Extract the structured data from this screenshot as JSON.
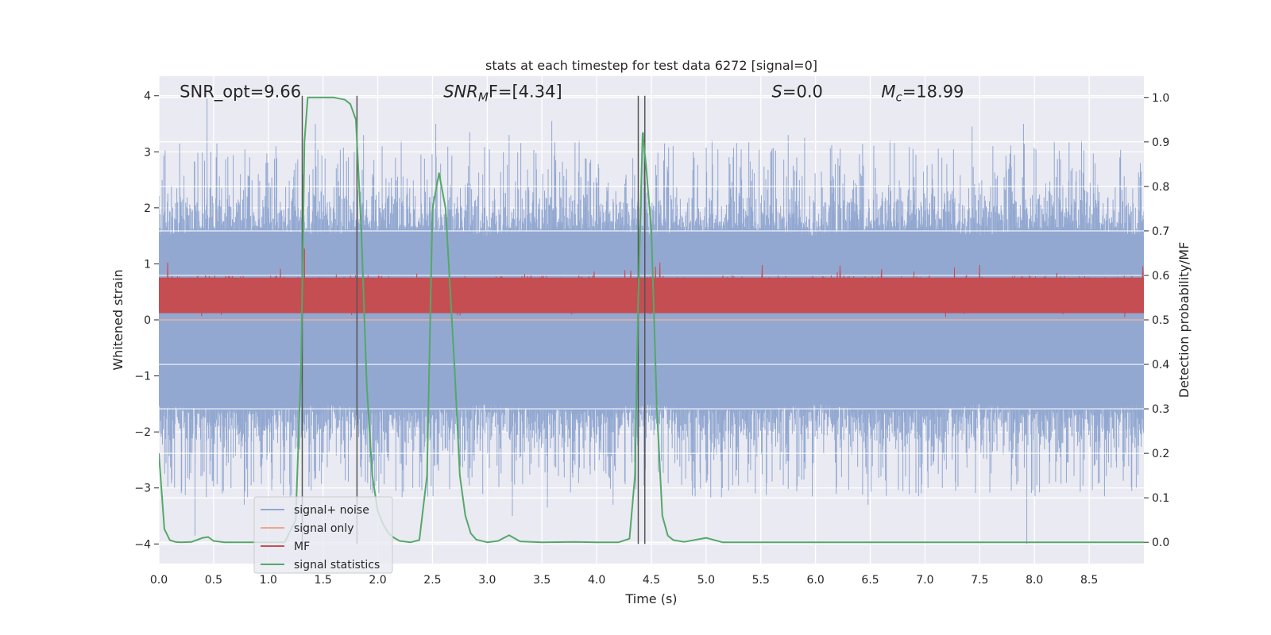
{
  "chart_data": {
    "type": "line",
    "title": "stats at each timestep for test data 6272 [signal=0]",
    "xlabel": "Time (s)",
    "ylabel": "Whitened strain",
    "ylabel_right": "Detection probability/MF",
    "xlim": [
      0.0,
      9.0
    ],
    "ylim": [
      -4.35,
      4.35
    ],
    "ylim_right": [
      -0.0478,
      1.0478
    ],
    "x_ticks": [
      "0.0",
      "0.5",
      "1.0",
      "1.5",
      "2.0",
      "2.5",
      "3.0",
      "3.5",
      "4.0",
      "4.5",
      "5.0",
      "5.5",
      "6.0",
      "6.5",
      "7.0",
      "7.5",
      "8.0",
      "8.5"
    ],
    "y_ticks": [
      "4",
      "3",
      "2",
      "1",
      "0",
      "−1",
      "−2",
      "−3",
      "−4"
    ],
    "y_ticks_right": [
      "1.0",
      "0.9",
      "0.8",
      "0.7",
      "0.6",
      "0.5",
      "0.4",
      "0.3",
      "0.2",
      "0.1",
      "0.0"
    ],
    "grid": true,
    "legend_position": "lower left",
    "annotations": [
      {
        "text": "SNR_opt=9.66",
        "x": 0.19,
        "y": 4.0
      },
      {
        "text_main": "SNR",
        "text_sub": "M",
        "text_rest": "F=[4.34]",
        "x": 2.6,
        "y": 4.0
      },
      {
        "text_main": "S",
        "text_rest": "=0.0",
        "x": 5.6,
        "y": 4.0
      },
      {
        "text_main": "M",
        "text_sub": "c",
        "text_rest": "=18.99",
        "x": 6.6,
        "y": 4.0
      }
    ],
    "vertical_markers": [
      {
        "x": 1.31,
        "ymin": -4.0,
        "ymax": 4.0
      },
      {
        "x": 1.81,
        "ymin": -4.0,
        "ymax": 4.0
      },
      {
        "x": 4.38,
        "ymin": -4.0,
        "ymax": 4.0
      },
      {
        "x": 4.44,
        "ymin": -4.0,
        "ymax": 4.0
      }
    ],
    "series": [
      {
        "name": "signal+ noise",
        "color": "#92a8d1",
        "kind": "noise_band",
        "envelope": {
          "x": [
            0.0,
            0.5,
            1.0,
            1.5,
            2.0,
            2.5,
            3.0,
            3.5,
            4.0,
            4.5,
            5.0,
            5.5,
            6.0,
            6.5,
            7.0,
            7.5,
            8.0,
            8.5,
            9.0
          ],
          "upper_typical": [
            1.5,
            1.6,
            1.6,
            1.5,
            1.6,
            1.6,
            1.5,
            1.6,
            1.6,
            1.5,
            1.6,
            1.6,
            1.5,
            1.6,
            1.6,
            1.5,
            1.6,
            1.6,
            1.5
          ],
          "lower_typical": [
            -1.5,
            -1.6,
            -1.6,
            -1.5,
            -1.6,
            -1.6,
            -1.5,
            -1.6,
            -1.6,
            -1.5,
            -1.6,
            -1.6,
            -1.5,
            -1.6,
            -1.6,
            -1.5,
            -1.6,
            -1.6,
            -1.5
          ]
        },
        "peaks": [
          {
            "x": 0.03,
            "y": 2.5
          },
          {
            "x": 0.19,
            "y": 3.15
          },
          {
            "x": 0.44,
            "y": 3.95
          },
          {
            "x": 0.53,
            "y": 3.15
          },
          {
            "x": 0.83,
            "y": 2.9
          },
          {
            "x": 1.07,
            "y": 3.1
          },
          {
            "x": 1.43,
            "y": 3.5
          },
          {
            "x": 1.87,
            "y": 3.3
          },
          {
            "x": 2.04,
            "y": 3.1
          },
          {
            "x": 2.53,
            "y": 3.5
          },
          {
            "x": 2.84,
            "y": 3.35
          },
          {
            "x": 3.2,
            "y": 3.3
          },
          {
            "x": 3.59,
            "y": 3.55
          },
          {
            "x": 3.84,
            "y": 3.2
          },
          {
            "x": 4.43,
            "y": 3.35
          },
          {
            "x": 4.62,
            "y": 3.15
          },
          {
            "x": 5.21,
            "y": 2.9
          },
          {
            "x": 5.75,
            "y": 3.3
          },
          {
            "x": 5.9,
            "y": 3.25
          },
          {
            "x": 6.68,
            "y": 3.2
          },
          {
            "x": 6.89,
            "y": 3.05
          },
          {
            "x": 7.43,
            "y": 3.45
          },
          {
            "x": 7.62,
            "y": 3.1
          },
          {
            "x": 7.9,
            "y": 3.5
          },
          {
            "x": 8.43,
            "y": 3.2
          },
          {
            "x": 8.78,
            "y": 2.9
          }
        ],
        "troughs": [
          {
            "x": 0.33,
            "y": -3.85
          },
          {
            "x": 0.58,
            "y": -3.1
          },
          {
            "x": 0.78,
            "y": -3.3
          },
          {
            "x": 1.3,
            "y": -2.1
          },
          {
            "x": 1.85,
            "y": -2.8
          },
          {
            "x": 2.32,
            "y": -3.0
          },
          {
            "x": 3.23,
            "y": -3.5
          },
          {
            "x": 3.55,
            "y": -3.35
          },
          {
            "x": 4.15,
            "y": -3.3
          },
          {
            "x": 4.9,
            "y": -3.15
          },
          {
            "x": 5.45,
            "y": -3.1
          },
          {
            "x": 5.97,
            "y": -3.15
          },
          {
            "x": 6.48,
            "y": -3.3
          },
          {
            "x": 7.28,
            "y": -3.05
          },
          {
            "x": 7.93,
            "y": -4.0
          },
          {
            "x": 8.64,
            "y": -3.15
          }
        ]
      },
      {
        "name": "signal only",
        "color": "#f0a58e",
        "kind": "line",
        "x": [
          0.0,
          9.0
        ],
        "y": [
          0.0,
          0.0
        ]
      },
      {
        "name": "MF",
        "color": "#c44e52",
        "kind": "noise_band",
        "axis": "right",
        "range_typical": [
          0.52,
          0.6
        ],
        "range_max": [
          0.5,
          0.63
        ],
        "spikes": [
          {
            "x": 1.33,
            "y": 0.66
          }
        ]
      },
      {
        "name": "signal statistics",
        "color": "#55a868",
        "kind": "line",
        "axis": "right",
        "x": [
          0.0,
          0.05,
          0.1,
          0.15,
          0.2,
          0.3,
          0.4,
          0.45,
          0.5,
          0.6,
          0.7,
          0.8,
          1.0,
          1.15,
          1.25,
          1.3,
          1.33,
          1.36,
          1.4,
          1.5,
          1.6,
          1.7,
          1.75,
          1.8,
          1.85,
          1.9,
          1.95,
          2.0,
          2.05,
          2.1,
          2.15,
          2.2,
          2.3,
          2.38,
          2.45,
          2.5,
          2.56,
          2.62,
          2.7,
          2.75,
          2.8,
          2.85,
          2.9,
          3.0,
          3.1,
          3.2,
          3.3,
          3.5,
          3.8,
          4.0,
          4.2,
          4.3,
          4.35,
          4.38,
          4.42,
          4.45,
          4.5,
          4.55,
          4.6,
          4.65,
          4.7,
          4.8,
          5.0,
          5.15,
          5.5,
          6.0,
          7.0,
          8.0,
          9.0
        ],
        "y": [
          0.2,
          0.03,
          0.005,
          0.001,
          0.0,
          0.001,
          0.01,
          0.012,
          0.003,
          0.0,
          0.0,
          0.0,
          0.0,
          0.0,
          0.05,
          0.4,
          0.9,
          1.0,
          1.0,
          1.0,
          1.0,
          0.995,
          0.985,
          0.95,
          0.7,
          0.35,
          0.15,
          0.07,
          0.04,
          0.02,
          0.01,
          0.003,
          0.0,
          0.005,
          0.15,
          0.75,
          0.83,
          0.75,
          0.4,
          0.15,
          0.06,
          0.02,
          0.006,
          0.0,
          0.003,
          0.016,
          0.002,
          0.0,
          0.001,
          0.0,
          0.0,
          0.008,
          0.15,
          0.55,
          0.92,
          0.85,
          0.7,
          0.3,
          0.06,
          0.015,
          0.005,
          0.001,
          0.01,
          0.0,
          0.0,
          0.0,
          0.0,
          0.0,
          0.0
        ]
      }
    ]
  }
}
